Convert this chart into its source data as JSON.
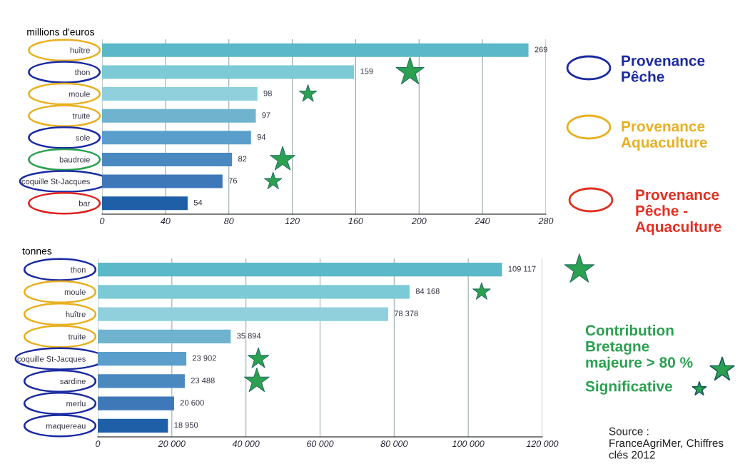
{
  "chart_data": [
    {
      "type": "bar",
      "orientation": "horizontal",
      "title": "millions d'euros",
      "categories": [
        "huître",
        "thon",
        "moule",
        "truite",
        "sole",
        "baudroie",
        "coquille St-Jacques",
        "bar"
      ],
      "values": [
        269,
        159,
        98,
        97,
        94,
        82,
        76,
        54
      ],
      "colors": [
        "#5ab8c8",
        "#7ccad6",
        "#8fd0dc",
        "#6fb3cf",
        "#5a9fcc",
        "#4a88c0",
        "#3f78b8",
        "#1f5fa8"
      ],
      "xlim": [
        0,
        280
      ],
      "xticks": [
        0,
        40,
        80,
        120,
        160,
        200,
        240,
        280
      ],
      "grid": "x",
      "data_labels": true
    },
    {
      "type": "bar",
      "orientation": "horizontal",
      "title": "tonnes",
      "categories": [
        "thon",
        "moule",
        "huître",
        "truite",
        "coquille St-Jacques",
        "sardine",
        "merlu",
        "maquereau"
      ],
      "values": [
        109117,
        84168,
        78378,
        35894,
        23902,
        23488,
        20600,
        18950
      ],
      "value_labels": [
        "109 117",
        "84 168",
        "78 378",
        "35 894",
        "23 902",
        "23 488",
        "20 600",
        "18 950"
      ],
      "colors": [
        "#5ab8c8",
        "#7ccad6",
        "#8fd0dc",
        "#6fb3cf",
        "#5a9fcc",
        "#4a88c0",
        "#3f78b8",
        "#1f5fa8"
      ],
      "xlim": [
        0,
        120000
      ],
      "xticks": [
        0,
        {
          "value": 20000,
          "label": "20 000"
        },
        {
          "value": 40000,
          "label": "40 000"
        },
        {
          "value": 60000,
          "label": "60 000"
        },
        {
          "value": 80000,
          "label": "80 000"
        },
        {
          "value": 100000,
          "label": "100 000"
        },
        {
          "value": 120000,
          "label": "120 000"
        }
      ],
      "grid": "x"
    },
    {
      "type": "other",
      "annotations": [
        "Provenance\nPêche",
        "Provenance\nAquaculture",
        "Provenance\nPêche -\nAquaculture",
        "Contribution\nBretagne\nmajeure > 80 %",
        "Significative",
        "Source :\nFranceAgriMer, Chiffres\nclés 2012"
      ]
    }
  ]
}
